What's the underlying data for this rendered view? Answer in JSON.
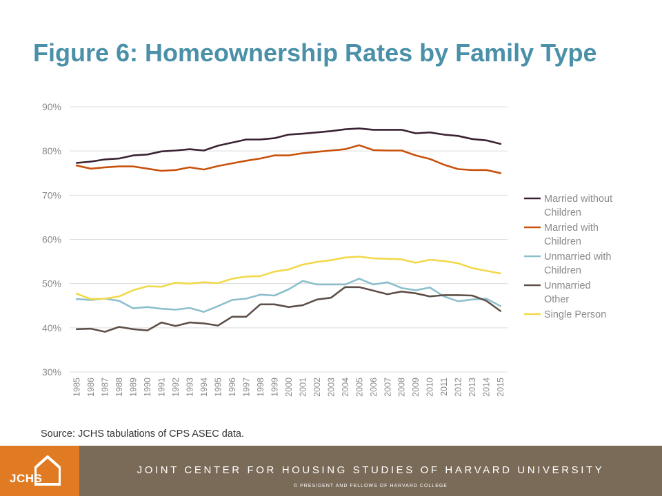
{
  "header": {
    "title": "Figure 6: Homeownership Rates by Family Type"
  },
  "chart_data": {
    "type": "line",
    "title": "Figure 6: Homeownership Rates by Family Type",
    "xlabel": "",
    "ylabel": "",
    "ylim": [
      30,
      90
    ],
    "yticks": [
      "30%",
      "40%",
      "50%",
      "60%",
      "70%",
      "80%",
      "90%"
    ],
    "grid": true,
    "legend_position": "right",
    "categories": [
      "1985",
      "1986",
      "1987",
      "1988",
      "1989",
      "1990",
      "1991",
      "1992",
      "1993",
      "1994",
      "1995",
      "1996",
      "1997",
      "1998",
      "1999",
      "2000",
      "2001",
      "2002",
      "2003",
      "2004",
      "2005",
      "2006",
      "2007",
      "2008",
      "2009",
      "2010",
      "2011",
      "2012",
      "2013",
      "2014",
      "2015"
    ],
    "series": [
      {
        "name": "Married without Children",
        "legend_lines": [
          "Married without",
          "Children"
        ],
        "color": "#3a2233",
        "values": [
          77.3,
          77.6,
          78.1,
          78.3,
          79.0,
          79.2,
          79.9,
          80.1,
          80.4,
          80.1,
          81.2,
          81.9,
          82.6,
          82.6,
          82.9,
          83.7,
          83.9,
          84.2,
          84.5,
          84.9,
          85.1,
          84.8,
          84.8,
          84.8,
          84.0,
          84.2,
          83.7,
          83.4,
          82.7,
          82.4,
          81.6
        ]
      },
      {
        "name": "Married with Children",
        "legend_lines": [
          "Married with",
          "Children"
        ],
        "color": "#c9510c",
        "values": [
          76.7,
          76.0,
          76.3,
          76.5,
          76.5,
          76.0,
          75.5,
          75.7,
          76.3,
          75.8,
          76.6,
          77.2,
          77.8,
          78.3,
          79.0,
          79.0,
          79.5,
          79.8,
          80.1,
          80.4,
          81.3,
          80.2,
          80.1,
          80.1,
          79.0,
          78.2,
          76.9,
          75.9,
          75.7,
          75.7,
          75.0
        ]
      },
      {
        "name": "Unmarried with Children",
        "legend_lines": [
          "Unmarried with",
          "Children"
        ],
        "color": "#8cbfcc",
        "values": [
          46.5,
          46.3,
          46.6,
          46.1,
          44.4,
          44.7,
          44.3,
          44.1,
          44.5,
          43.6,
          44.9,
          46.3,
          46.6,
          47.5,
          47.3,
          48.7,
          50.6,
          49.8,
          49.8,
          49.8,
          51.1,
          49.8,
          50.3,
          49.0,
          48.5,
          49.1,
          47.1,
          46.0,
          46.4,
          46.6,
          44.9
        ]
      },
      {
        "name": "Unmarried Other",
        "legend_lines": [
          "Unmarried",
          "Other"
        ],
        "color": "#5e5049",
        "values": [
          39.7,
          39.8,
          39.1,
          40.2,
          39.7,
          39.4,
          41.2,
          40.4,
          41.2,
          41.0,
          40.5,
          42.5,
          42.5,
          45.3,
          45.3,
          44.7,
          45.1,
          46.4,
          46.8,
          49.2,
          49.2,
          48.4,
          47.6,
          48.2,
          47.8,
          47.1,
          47.4,
          47.4,
          47.3,
          46.1,
          43.8
        ]
      },
      {
        "name": "Single Person",
        "legend_lines": [
          "Single Person"
        ],
        "color": "#f2d94a",
        "values": [
          47.7,
          46.5,
          46.6,
          47.1,
          48.5,
          49.4,
          49.3,
          50.2,
          50.0,
          50.3,
          50.1,
          51.1,
          51.6,
          51.7,
          52.7,
          53.2,
          54.3,
          54.9,
          55.3,
          55.9,
          56.1,
          55.7,
          55.6,
          55.5,
          54.7,
          55.4,
          55.1,
          54.6,
          53.5,
          52.9,
          52.3
        ]
      }
    ]
  },
  "source": {
    "text": "Source: JCHS tabulations of CPS ASEC data."
  },
  "footer": {
    "logo_text": "JCHS",
    "org_name": "JOINT CENTER FOR HOUSING STUDIES OF HARVARD UNIVERSITY",
    "copyright": "© PRESIDENT AND FELLOWS OF HARVARD COLLEGE"
  }
}
